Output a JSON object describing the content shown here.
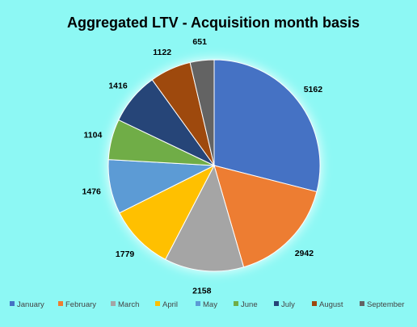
{
  "chart_data": {
    "type": "pie",
    "title": "Aggregated LTV - Acquisition month basis",
    "categories": [
      "January",
      "February",
      "March",
      "April",
      "May",
      "June",
      "July",
      "August",
      "September"
    ],
    "values": [
      5162,
      2942,
      2158,
      1779,
      1476,
      1104,
      1416,
      1122,
      651
    ],
    "colors": [
      "#4472c4",
      "#ed7d31",
      "#a5a5a5",
      "#ffc000",
      "#5b9bd5",
      "#70ad47",
      "#264478",
      "#9e480e",
      "#636363"
    ],
    "legend_position": "bottom",
    "data_labels": "outside"
  }
}
